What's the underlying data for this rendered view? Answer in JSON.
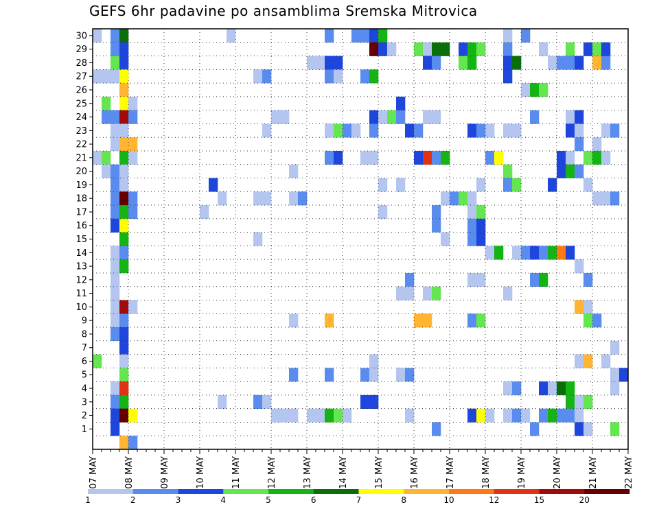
{
  "chart_data": {
    "type": "heatmap",
    "title": "GEFS 6hr padavine po ansamblima Sremska Mitrovica",
    "xlabel": "",
    "ylabel": "",
    "x_tick_labels": [
      "07 MAY",
      "08 MAY",
      "09 MAY",
      "10 MAY",
      "11 MAY",
      "12 MAY",
      "13 MAY",
      "14 MAY",
      "15 MAY",
      "16 MAY",
      "17 MAY",
      "18 MAY",
      "19 MAY",
      "20 MAY",
      "21 MAY",
      "22 MAY"
    ],
    "y_tick_labels": [
      "1",
      "2",
      "3",
      "4",
      "5",
      "6",
      "7",
      "8",
      "9",
      "10",
      "11",
      "12",
      "13",
      "14",
      "15",
      "16",
      "17",
      "18",
      "19",
      "20",
      "21",
      "22",
      "23",
      "24",
      "25",
      "26",
      "27",
      "28",
      "29",
      "30"
    ],
    "ensemble_members": [
      0,
      30
    ],
    "time_steps_per_day": 4,
    "grid": true,
    "legend_position": "bottom",
    "legend": {
      "labels": [
        "1",
        "2",
        "3",
        "4",
        "5",
        "6",
        "7",
        "8",
        "10",
        "12",
        "15",
        "20"
      ],
      "colors": [
        "#b4c6f0",
        "#5a8cf0",
        "#1e46dc",
        "#64e650",
        "#14b414",
        "#0a6e0a",
        "#ffff00",
        "#ffb432",
        "#ff7814",
        "#e13214",
        "#a00a0a",
        "#640000"
      ]
    },
    "cells": [
      [
        2,
        30,
        1
      ],
      [
        3,
        30,
        5
      ],
      [
        15,
        30,
        0
      ],
      [
        26,
        30,
        1
      ],
      [
        29,
        30,
        1
      ],
      [
        30,
        30,
        1
      ],
      [
        31,
        30,
        2
      ],
      [
        32,
        30,
        4
      ],
      [
        46,
        30,
        0
      ],
      [
        48,
        30,
        1
      ],
      [
        0,
        30,
        0
      ],
      [
        2,
        29,
        1
      ],
      [
        3,
        29,
        2
      ],
      [
        31,
        29,
        11
      ],
      [
        32,
        29,
        2
      ],
      [
        33,
        29,
        0
      ],
      [
        36,
        29,
        3
      ],
      [
        37,
        29,
        0
      ],
      [
        38,
        29,
        5
      ],
      [
        39,
        29,
        5
      ],
      [
        41,
        29,
        2
      ],
      [
        42,
        29,
        4
      ],
      [
        43,
        29,
        3
      ],
      [
        46,
        29,
        1
      ],
      [
        50,
        29,
        0
      ],
      [
        53,
        29,
        3
      ],
      [
        55,
        29,
        2
      ],
      [
        56,
        29,
        3
      ],
      [
        57,
        29,
        2
      ],
      [
        2,
        28,
        3
      ],
      [
        3,
        28,
        2
      ],
      [
        24,
        28,
        0
      ],
      [
        25,
        28,
        0
      ],
      [
        26,
        28,
        2
      ],
      [
        27,
        28,
        2
      ],
      [
        37,
        28,
        2
      ],
      [
        38,
        28,
        1
      ],
      [
        41,
        28,
        3
      ],
      [
        42,
        28,
        4
      ],
      [
        46,
        28,
        2
      ],
      [
        47,
        28,
        5
      ],
      [
        51,
        28,
        0
      ],
      [
        52,
        28,
        1
      ],
      [
        53,
        28,
        1
      ],
      [
        54,
        28,
        2
      ],
      [
        56,
        28,
        7
      ],
      [
        57,
        28,
        1
      ],
      [
        0,
        27,
        0
      ],
      [
        1,
        27,
        0
      ],
      [
        2,
        27,
        0
      ],
      [
        3,
        27,
        6
      ],
      [
        18,
        27,
        0
      ],
      [
        19,
        27,
        1
      ],
      [
        26,
        27,
        1
      ],
      [
        27,
        27,
        0
      ],
      [
        30,
        27,
        1
      ],
      [
        31,
        27,
        4
      ],
      [
        46,
        27,
        2
      ],
      [
        3,
        26,
        7
      ],
      [
        48,
        26,
        0
      ],
      [
        49,
        26,
        4
      ],
      [
        50,
        26,
        3
      ],
      [
        1,
        25,
        3
      ],
      [
        3,
        25,
        6
      ],
      [
        4,
        25,
        0
      ],
      [
        34,
        25,
        2
      ],
      [
        1,
        24,
        1
      ],
      [
        2,
        24,
        1
      ],
      [
        3,
        24,
        10
      ],
      [
        4,
        24,
        1
      ],
      [
        20,
        24,
        0
      ],
      [
        21,
        24,
        0
      ],
      [
        31,
        24,
        2
      ],
      [
        32,
        24,
        0
      ],
      [
        33,
        24,
        3
      ],
      [
        34,
        24,
        1
      ],
      [
        37,
        24,
        0
      ],
      [
        38,
        24,
        0
      ],
      [
        49,
        24,
        1
      ],
      [
        53,
        24,
        0
      ],
      [
        54,
        24,
        2
      ],
      [
        2,
        23,
        0
      ],
      [
        3,
        23,
        0
      ],
      [
        19,
        23,
        0
      ],
      [
        26,
        23,
        0
      ],
      [
        27,
        23,
        3
      ],
      [
        28,
        23,
        1
      ],
      [
        29,
        23,
        0
      ],
      [
        31,
        23,
        1
      ],
      [
        35,
        23,
        2
      ],
      [
        36,
        23,
        1
      ],
      [
        42,
        23,
        2
      ],
      [
        43,
        23,
        1
      ],
      [
        44,
        23,
        0
      ],
      [
        46,
        23,
        0
      ],
      [
        47,
        23,
        0
      ],
      [
        53,
        23,
        2
      ],
      [
        54,
        23,
        0
      ],
      [
        57,
        23,
        0
      ],
      [
        58,
        23,
        1
      ],
      [
        2,
        22,
        0
      ],
      [
        3,
        22,
        7
      ],
      [
        4,
        22,
        7
      ],
      [
        54,
        22,
        1
      ],
      [
        56,
        22,
        0
      ],
      [
        0,
        21,
        0
      ],
      [
        1,
        21,
        3
      ],
      [
        3,
        21,
        4
      ],
      [
        4,
        21,
        0
      ],
      [
        26,
        21,
        1
      ],
      [
        27,
        21,
        2
      ],
      [
        30,
        21,
        0
      ],
      [
        31,
        21,
        0
      ],
      [
        36,
        21,
        2
      ],
      [
        37,
        21,
        9
      ],
      [
        38,
        21,
        1
      ],
      [
        39,
        21,
        4
      ],
      [
        44,
        21,
        1
      ],
      [
        45,
        21,
        6
      ],
      [
        52,
        21,
        2
      ],
      [
        53,
        21,
        0
      ],
      [
        55,
        21,
        3
      ],
      [
        56,
        21,
        4
      ],
      [
        57,
        21,
        0
      ],
      [
        1,
        20,
        0
      ],
      [
        2,
        20,
        1
      ],
      [
        3,
        20,
        0
      ],
      [
        22,
        20,
        0
      ],
      [
        46,
        20,
        3
      ],
      [
        52,
        20,
        2
      ],
      [
        53,
        20,
        4
      ],
      [
        54,
        20,
        1
      ],
      [
        2,
        19,
        1
      ],
      [
        3,
        19,
        0
      ],
      [
        13,
        19,
        2
      ],
      [
        32,
        19,
        0
      ],
      [
        34,
        19,
        0
      ],
      [
        43,
        19,
        0
      ],
      [
        46,
        19,
        1
      ],
      [
        47,
        19,
        3
      ],
      [
        51,
        19,
        2
      ],
      [
        55,
        19,
        0
      ],
      [
        2,
        18,
        1
      ],
      [
        3,
        18,
        11
      ],
      [
        4,
        18,
        1
      ],
      [
        14,
        18,
        0
      ],
      [
        18,
        18,
        0
      ],
      [
        19,
        18,
        0
      ],
      [
        22,
        18,
        0
      ],
      [
        23,
        18,
        1
      ],
      [
        39,
        18,
        0
      ],
      [
        40,
        18,
        1
      ],
      [
        41,
        18,
        3
      ],
      [
        42,
        18,
        0
      ],
      [
        56,
        18,
        0
      ],
      [
        57,
        18,
        0
      ],
      [
        58,
        18,
        1
      ],
      [
        2,
        17,
        1
      ],
      [
        3,
        17,
        4
      ],
      [
        4,
        17,
        1
      ],
      [
        12,
        17,
        0
      ],
      [
        32,
        17,
        0
      ],
      [
        38,
        17,
        1
      ],
      [
        42,
        17,
        0
      ],
      [
        43,
        17,
        3
      ],
      [
        2,
        16,
        2
      ],
      [
        3,
        16,
        6
      ],
      [
        38,
        16,
        1
      ],
      [
        42,
        16,
        1
      ],
      [
        43,
        16,
        2
      ],
      [
        3,
        15,
        4
      ],
      [
        18,
        15,
        0
      ],
      [
        39,
        15,
        0
      ],
      [
        42,
        15,
        1
      ],
      [
        43,
        15,
        2
      ],
      [
        2,
        14,
        0
      ],
      [
        3,
        14,
        1
      ],
      [
        44,
        14,
        0
      ],
      [
        45,
        14,
        4
      ],
      [
        47,
        14,
        0
      ],
      [
        48,
        14,
        1
      ],
      [
        49,
        14,
        2
      ],
      [
        50,
        14,
        1
      ],
      [
        51,
        14,
        4
      ],
      [
        52,
        14,
        8
      ],
      [
        53,
        14,
        2
      ],
      [
        2,
        13,
        0
      ],
      [
        3,
        13,
        4
      ],
      [
        54,
        13,
        0
      ],
      [
        2,
        12,
        0
      ],
      [
        35,
        12,
        1
      ],
      [
        42,
        12,
        0
      ],
      [
        43,
        12,
        0
      ],
      [
        49,
        12,
        1
      ],
      [
        50,
        12,
        4
      ],
      [
        55,
        12,
        1
      ],
      [
        2,
        11,
        0
      ],
      [
        34,
        11,
        0
      ],
      [
        35,
        11,
        0
      ],
      [
        37,
        11,
        0
      ],
      [
        38,
        11,
        3
      ],
      [
        46,
        11,
        0
      ],
      [
        2,
        10,
        0
      ],
      [
        3,
        10,
        10
      ],
      [
        4,
        10,
        0
      ],
      [
        54,
        10,
        7
      ],
      [
        55,
        10,
        0
      ],
      [
        2,
        9,
        0
      ],
      [
        3,
        9,
        1
      ],
      [
        22,
        9,
        0
      ],
      [
        26,
        9,
        7
      ],
      [
        36,
        9,
        7
      ],
      [
        37,
        9,
        7
      ],
      [
        42,
        9,
        1
      ],
      [
        43,
        9,
        3
      ],
      [
        55,
        9,
        3
      ],
      [
        56,
        9,
        1
      ],
      [
        2,
        8,
        1
      ],
      [
        3,
        8,
        2
      ],
      [
        3,
        7,
        2
      ],
      [
        58,
        7,
        0
      ],
      [
        0,
        6,
        3
      ],
      [
        3,
        6,
        0
      ],
      [
        31,
        6,
        0
      ],
      [
        54,
        6,
        0
      ],
      [
        55,
        6,
        7
      ],
      [
        57,
        6,
        0
      ],
      [
        3,
        5,
        3
      ],
      [
        22,
        5,
        1
      ],
      [
        26,
        5,
        1
      ],
      [
        30,
        5,
        1
      ],
      [
        31,
        5,
        0
      ],
      [
        34,
        5,
        0
      ],
      [
        35,
        5,
        1
      ],
      [
        58,
        5,
        0
      ],
      [
        59,
        5,
        2
      ],
      [
        2,
        4,
        0
      ],
      [
        3,
        4,
        9
      ],
      [
        46,
        4,
        0
      ],
      [
        47,
        4,
        1
      ],
      [
        50,
        4,
        2
      ],
      [
        51,
        4,
        0
      ],
      [
        52,
        4,
        5
      ],
      [
        53,
        4,
        4
      ],
      [
        58,
        4,
        0
      ],
      [
        2,
        3,
        1
      ],
      [
        3,
        3,
        4
      ],
      [
        14,
        3,
        0
      ],
      [
        18,
        3,
        1
      ],
      [
        19,
        3,
        0
      ],
      [
        30,
        3,
        2
      ],
      [
        31,
        3,
        2
      ],
      [
        53,
        3,
        4
      ],
      [
        54,
        3,
        0
      ],
      [
        55,
        3,
        3
      ],
      [
        2,
        2,
        2
      ],
      [
        3,
        2,
        11
      ],
      [
        4,
        2,
        6
      ],
      [
        20,
        2,
        0
      ],
      [
        21,
        2,
        0
      ],
      [
        22,
        2,
        0
      ],
      [
        24,
        2,
        0
      ],
      [
        25,
        2,
        0
      ],
      [
        26,
        2,
        4
      ],
      [
        27,
        2,
        3
      ],
      [
        28,
        2,
        0
      ],
      [
        35,
        2,
        0
      ],
      [
        42,
        2,
        2
      ],
      [
        43,
        2,
        6
      ],
      [
        44,
        2,
        0
      ],
      [
        46,
        2,
        0
      ],
      [
        47,
        2,
        1
      ],
      [
        48,
        2,
        0
      ],
      [
        50,
        2,
        1
      ],
      [
        51,
        2,
        4
      ],
      [
        52,
        2,
        1
      ],
      [
        53,
        2,
        1
      ],
      [
        54,
        2,
        0
      ],
      [
        2,
        1,
        2
      ],
      [
        38,
        1,
        1
      ],
      [
        49,
        1,
        1
      ],
      [
        54,
        1,
        2
      ],
      [
        55,
        1,
        0
      ],
      [
        58,
        1,
        3
      ],
      [
        3,
        0,
        7
      ],
      [
        4,
        0,
        1
      ]
    ]
  }
}
